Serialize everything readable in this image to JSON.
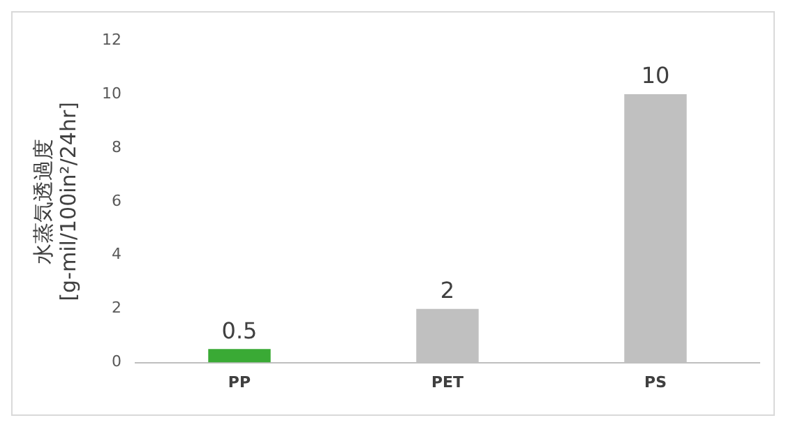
{
  "chart_data": {
    "type": "bar",
    "ylabel": "水蒸気透過度\n[g-mil/100in²/24hr]",
    "categories": [
      "PP",
      "PET",
      "PS"
    ],
    "values": [
      0.5,
      2,
      10
    ],
    "colors": [
      "#3aaa35",
      "#c0c0c0",
      "#c0c0c0"
    ],
    "ylim": [
      0,
      12
    ],
    "yticks": [
      0,
      2,
      4,
      6,
      8,
      10,
      12
    ],
    "grid": false,
    "legend": false,
    "data_labels": true
  }
}
